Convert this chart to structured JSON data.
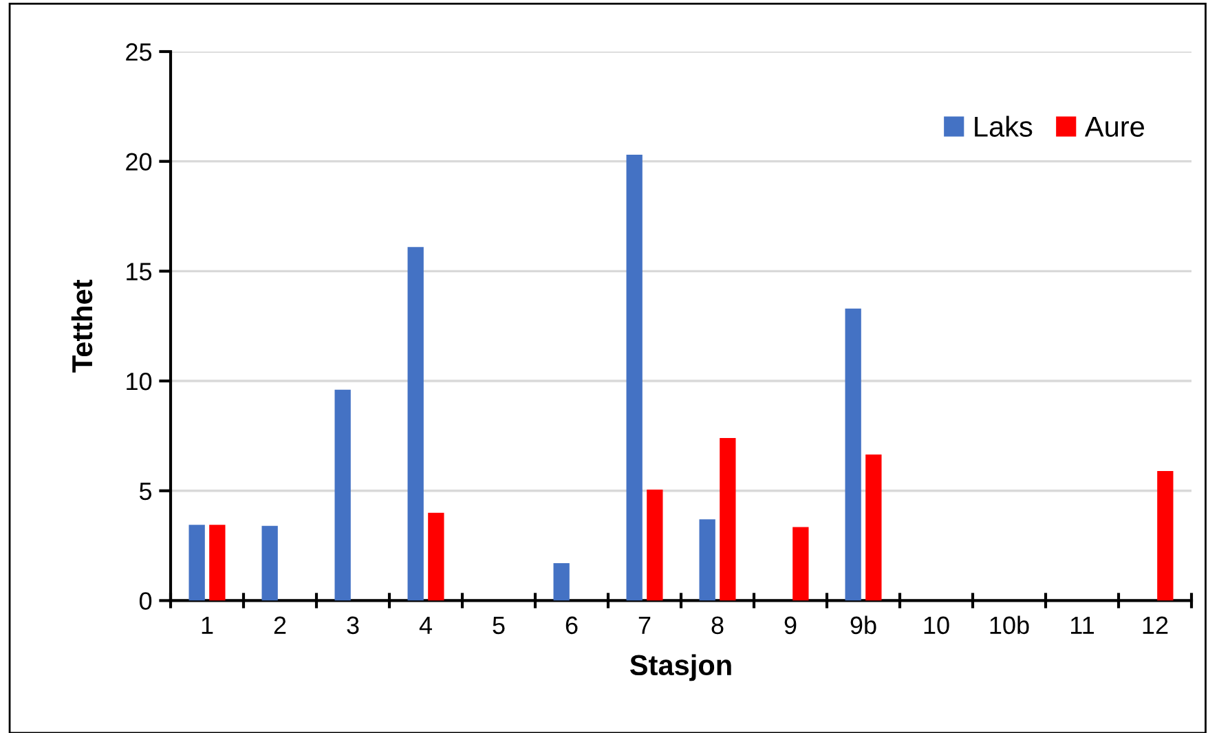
{
  "chart_data": {
    "type": "bar",
    "xlabel": "Stasjon",
    "ylabel": "Tetthet",
    "categories": [
      "1",
      "2",
      "3",
      "4",
      "5",
      "6",
      "7",
      "8",
      "9",
      "9b",
      "10",
      "10b",
      "11",
      "12"
    ],
    "series": [
      {
        "name": "Laks",
        "color": "#4472c4",
        "values": [
          3.45,
          3.4,
          9.6,
          16.1,
          null,
          1.7,
          20.3,
          3.7,
          null,
          13.3,
          null,
          null,
          null,
          null
        ]
      },
      {
        "name": "Aure",
        "color": "#ff0000",
        "values": [
          3.45,
          null,
          null,
          4.0,
          null,
          null,
          5.05,
          7.4,
          3.35,
          6.65,
          null,
          null,
          null,
          5.9
        ]
      }
    ],
    "ylim": [
      0,
      25
    ],
    "yticks": [
      0,
      5,
      10,
      15,
      20,
      25
    ],
    "grid": "y",
    "legend": "top right"
  }
}
